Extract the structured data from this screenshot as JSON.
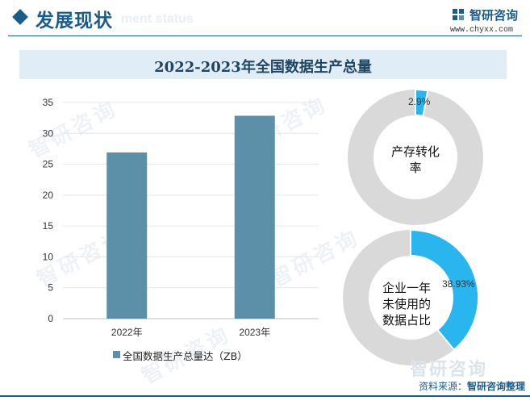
{
  "header": {
    "title": "发展现状",
    "ghost_text": "ment status",
    "brand": "智研咨询",
    "url": "www.chyxx.com",
    "accent_color": "#1a5d8c"
  },
  "watermark": {
    "text": "智研咨询"
  },
  "source": {
    "label": "资料来源：",
    "value": "智研咨询整理"
  },
  "chart_data": [
    {
      "type": "bar",
      "title": "2022-2023年全国数据生产总量",
      "categories": [
        "2022年",
        "2023年"
      ],
      "series": [
        {
          "name": "全国数据生产总量达（ZB）",
          "values": [
            26.9,
            32.85
          ],
          "color": "#5b90a8"
        }
      ],
      "ylim": [
        0,
        35
      ],
      "yticks": [
        0,
        5,
        10,
        15,
        20,
        25,
        30,
        35
      ],
      "grid": true,
      "legend_position": "bottom"
    },
    {
      "type": "pie",
      "variant": "donut",
      "center_label": "产存转化率",
      "slices": [
        {
          "value": 2.9,
          "label": "2.9%",
          "color": "#29b6ef"
        }
      ],
      "remainder_color": "#d9d9d9"
    },
    {
      "type": "pie",
      "variant": "donut",
      "center_label": "企业一年未使用的数据占比",
      "slices": [
        {
          "value": 38.93,
          "label": "38.93%",
          "color": "#29b6ef"
        }
      ],
      "remainder_color": "#d9d9d9"
    }
  ]
}
